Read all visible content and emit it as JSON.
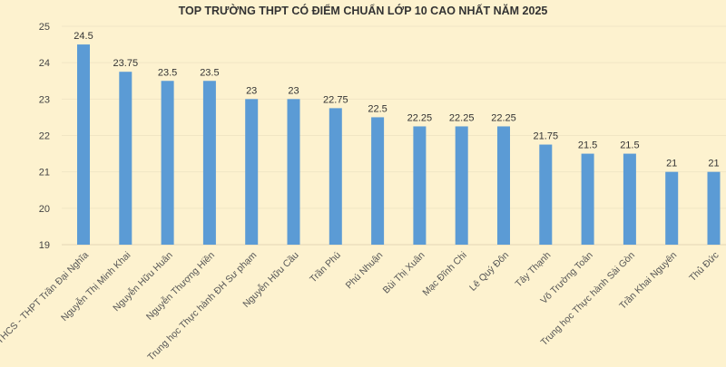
{
  "chart_data": {
    "type": "bar",
    "title": "TOP TRƯỜNG THPT CÓ ĐIỂM CHUẨN LỚP 10 CAO NHẤT NĂM 2025",
    "xlabel": "",
    "ylabel": "",
    "ylim": [
      19,
      25
    ],
    "yticks": [
      19,
      20,
      21,
      22,
      23,
      24,
      25
    ],
    "grid": true,
    "bar_color": "#5b9bd5",
    "background": "#fdf2cf",
    "categories": [
      "THCS - THPT Trần Đại Nghĩa",
      "Nguyễn Thị Minh Khai",
      "Nguyễn Hữu Huân",
      "Nguyễn Thượng Hiền",
      "Trung học Thực hành ĐH Sư phạm",
      "Nguyễn Hữu Cầu",
      "Trần Phú",
      "Phú Nhuận",
      "Bùi Thị Xuân",
      "Mạc Đĩnh Chi",
      "Lê Quý Đôn",
      "Tây Thạnh",
      "Võ Trường Toản",
      "Trung học Thực hành Sài Gòn",
      "Trần Khai Nguyên",
      "Thủ Đức"
    ],
    "values": [
      24.5,
      23.75,
      23.5,
      23.5,
      23,
      23,
      22.75,
      22.5,
      22.25,
      22.25,
      22.25,
      21.75,
      21.5,
      21.5,
      21,
      21
    ]
  }
}
